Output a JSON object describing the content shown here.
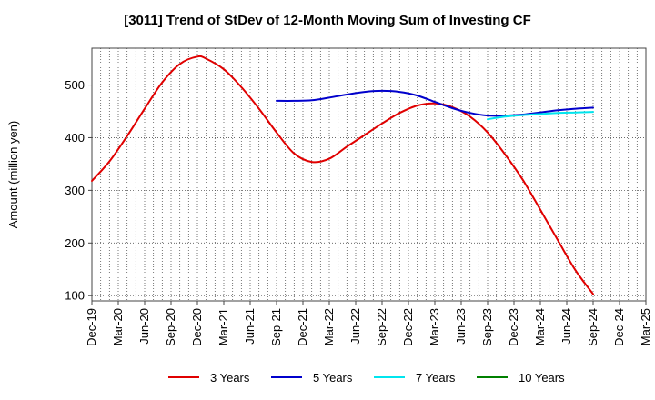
{
  "chart_data": {
    "type": "line",
    "title": "[3011]  Trend of StDev of 12-Month Moving Sum of Investing CF",
    "ylabel": "Amount (million yen)",
    "xlabel": "",
    "ylim": [
      90,
      570
    ],
    "yticks": [
      100,
      200,
      300,
      400,
      500
    ],
    "xlim": [
      "Dec-19",
      "Mar-25"
    ],
    "xticks": [
      "Dec-19",
      "Mar-20",
      "Jun-20",
      "Sep-20",
      "Dec-20",
      "Mar-21",
      "Jun-21",
      "Sep-21",
      "Dec-21",
      "Mar-22",
      "Jun-22",
      "Sep-22",
      "Dec-22",
      "Mar-23",
      "Jun-23",
      "Sep-23",
      "Dec-23",
      "Mar-24",
      "Jun-24",
      "Sep-24",
      "Dec-24",
      "Mar-25"
    ],
    "grid": true,
    "legend_position": "bottom",
    "series": [
      {
        "name": "3 Years",
        "color": "#e00000",
        "points": [
          [
            "Dec-19",
            318
          ],
          [
            "Feb-20",
            355
          ],
          [
            "Apr-20",
            403
          ],
          [
            "Jun-20",
            455
          ],
          [
            "Aug-20",
            505
          ],
          [
            "Oct-20",
            540
          ],
          [
            "Dec-20",
            554
          ],
          [
            "Jan-21",
            550
          ],
          [
            "Mar-21",
            530
          ],
          [
            "May-21",
            496
          ],
          [
            "Jul-21",
            455
          ],
          [
            "Sep-21",
            410
          ],
          [
            "Nov-21",
            370
          ],
          [
            "Jan-22",
            354
          ],
          [
            "Mar-22",
            360
          ],
          [
            "May-22",
            383
          ],
          [
            "Jul-22",
            405
          ],
          [
            "Sep-22",
            427
          ],
          [
            "Nov-22",
            447
          ],
          [
            "Jan-23",
            461
          ],
          [
            "Mar-23",
            465
          ],
          [
            "May-23",
            458
          ],
          [
            "Jul-23",
            440
          ],
          [
            "Sep-23",
            410
          ],
          [
            "Nov-23",
            368
          ],
          [
            "Jan-24",
            320
          ],
          [
            "Mar-24",
            263
          ],
          [
            "May-24",
            205
          ],
          [
            "Jul-24",
            148
          ],
          [
            "Sep-24",
            103
          ]
        ]
      },
      {
        "name": "5 Years",
        "color": "#0000cc",
        "points": [
          [
            "Sep-21",
            470
          ],
          [
            "Nov-21",
            470
          ],
          [
            "Jan-22",
            471
          ],
          [
            "Mar-22",
            476
          ],
          [
            "May-22",
            482
          ],
          [
            "Jul-22",
            487
          ],
          [
            "Sep-22",
            489
          ],
          [
            "Nov-22",
            487
          ],
          [
            "Jan-23",
            480
          ],
          [
            "Mar-23",
            468
          ],
          [
            "May-23",
            456
          ],
          [
            "Jul-23",
            447
          ],
          [
            "Sep-23",
            442
          ],
          [
            "Nov-23",
            442
          ],
          [
            "Jan-24",
            444
          ],
          [
            "Mar-24",
            448
          ],
          [
            "May-24",
            452
          ],
          [
            "Jul-24",
            455
          ],
          [
            "Sep-24",
            457
          ]
        ]
      },
      {
        "name": "7 Years",
        "color": "#00e5ee",
        "points": [
          [
            "Sep-23",
            435
          ],
          [
            "Nov-23",
            440
          ],
          [
            "Jan-24",
            443
          ],
          [
            "Mar-24",
            445
          ],
          [
            "May-24",
            447
          ],
          [
            "Jul-24",
            448
          ],
          [
            "Sep-24",
            449
          ]
        ]
      },
      {
        "name": "10 Years",
        "color": "#008000",
        "points": []
      }
    ]
  }
}
